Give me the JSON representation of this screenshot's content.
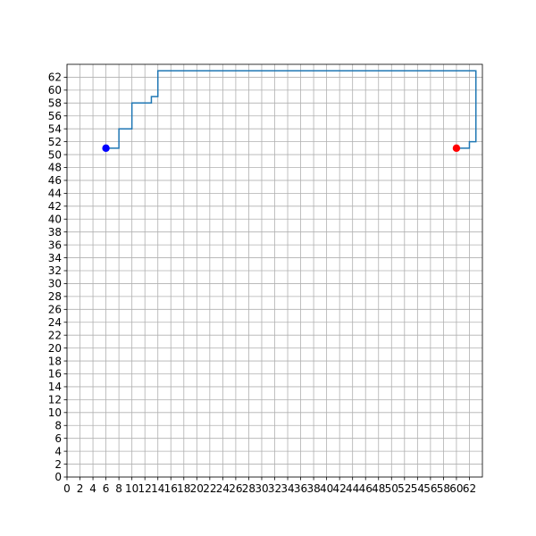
{
  "chart_data": {
    "type": "line",
    "title": "",
    "xlabel": "",
    "ylabel": "",
    "xlim": [
      0,
      64
    ],
    "ylim": [
      0,
      64
    ],
    "grid": true,
    "x_ticks": [
      0,
      2,
      4,
      6,
      8,
      10,
      12,
      14,
      16,
      18,
      20,
      22,
      24,
      26,
      28,
      30,
      32,
      34,
      36,
      38,
      40,
      42,
      44,
      46,
      48,
      50,
      52,
      54,
      56,
      58,
      60,
      62
    ],
    "y_ticks": [
      0,
      2,
      4,
      6,
      8,
      10,
      12,
      14,
      16,
      18,
      20,
      22,
      24,
      26,
      28,
      30,
      32,
      34,
      36,
      38,
      40,
      42,
      44,
      46,
      48,
      50,
      52,
      54,
      56,
      58,
      60,
      62
    ],
    "series": [
      {
        "color": "#1f77b4",
        "points": [
          [
            6,
            51
          ],
          [
            8,
            51
          ],
          [
            8,
            54
          ],
          [
            10,
            54
          ],
          [
            10,
            58
          ],
          [
            13,
            58
          ],
          [
            13,
            59
          ],
          [
            14,
            59
          ],
          [
            14,
            63
          ],
          [
            63,
            63
          ],
          [
            63,
            52
          ],
          [
            62,
            52
          ],
          [
            62,
            51
          ],
          [
            60,
            51
          ]
        ]
      }
    ],
    "markers": [
      {
        "role": "start",
        "x": 6,
        "y": 51,
        "color": "#0000ff"
      },
      {
        "role": "goal",
        "x": 60,
        "y": 51,
        "color": "#ff0000"
      }
    ]
  }
}
